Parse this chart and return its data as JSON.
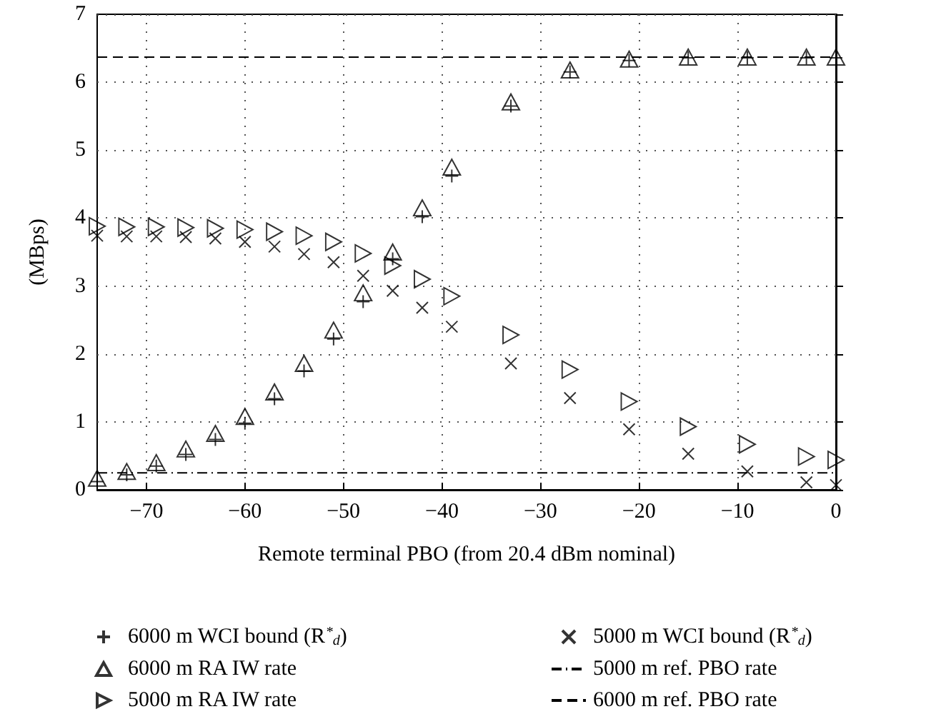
{
  "chart_data": {
    "type": "scatter",
    "xlabel": "Remote terminal PBO (from 20.4 dBm nominal)",
    "ylabel": "(MBps)",
    "x": [
      -75,
      -72,
      -69,
      -66,
      -63,
      -60,
      -57,
      -54,
      -51,
      -48,
      -45,
      -42,
      -39,
      -33,
      -27,
      -21,
      -15,
      -9,
      -3,
      0
    ],
    "series": [
      {
        "name": "6000 m WCI bound (R$^{*}$$_{d}$)",
        "color": "#000000",
        "marker": "plus",
        "values": [
          0.12,
          0.22,
          0.35,
          0.52,
          0.74,
          0.98,
          1.34,
          1.75,
          2.22,
          2.77,
          3.4,
          4.02,
          4.62,
          5.65,
          6.15,
          6.32,
          6.36,
          6.36,
          6.36,
          6.36
        ]
      },
      {
        "name": "6000 m RA IW rate",
        "color": "#000000",
        "marker": "triangle",
        "values": [
          0.17,
          0.27,
          0.4,
          0.6,
          0.83,
          1.08,
          1.44,
          1.86,
          2.35,
          2.9,
          3.5,
          4.15,
          4.75,
          5.71,
          6.18,
          6.34,
          6.37,
          6.37,
          6.37,
          6.37
        ]
      },
      {
        "name": "5000 m RA IW rate",
        "color": "#000000",
        "marker": "triangle-right",
        "values": [
          3.88,
          3.87,
          3.87,
          3.86,
          3.85,
          3.83,
          3.8,
          3.74,
          3.65,
          3.48,
          3.3,
          3.1,
          2.85,
          2.28,
          1.77,
          1.3,
          0.93,
          0.67,
          0.49,
          0.44
        ]
      },
      {
        "name": "5000 m WCI bound (R$^{*}$$_{d}$)",
        "color": "#000000",
        "marker": "cross",
        "values": [
          3.74,
          3.73,
          3.73,
          3.72,
          3.7,
          3.65,
          3.58,
          3.47,
          3.35,
          3.15,
          2.93,
          2.68,
          2.4,
          1.86,
          1.35,
          0.89,
          0.53,
          0.27,
          0.11,
          0.07
        ]
      }
    ],
    "ref_lines": [
      {
        "axis": "y",
        "value": 0.25,
        "label": "5000 m ref. PBO rate",
        "color": "#000000",
        "line_style": "dashdot"
      },
      {
        "axis": "y",
        "value": 6.37,
        "label": "6000 m ref. PBO rate",
        "color": "#000000",
        "line_style": "dashed"
      }
    ],
    "xlim": [
      -75,
      0
    ],
    "xticks": [
      -70,
      -60,
      -50,
      -40,
      -30,
      -20,
      -10,
      0
    ],
    "ylim": [
      0,
      7
    ],
    "yticks": [
      0,
      1,
      2,
      3,
      4,
      5,
      6,
      7
    ],
    "grid": true,
    "legend": "bottom"
  }
}
